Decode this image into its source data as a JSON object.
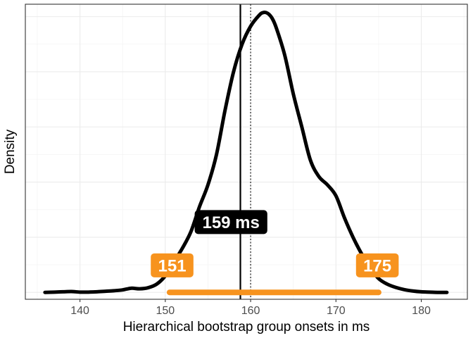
{
  "chart_data": {
    "type": "line",
    "xlabel": "Hierarchical bootstrap group onsets in ms",
    "ylabel": "Density",
    "xlim": [
      133.6,
      185.4
    ],
    "ylim": [
      -0.0025,
      0.1045
    ],
    "x_ticks": [
      140,
      150,
      160,
      170,
      180
    ],
    "x_tick_labels": [
      "140",
      "150",
      "160",
      "170",
      "180"
    ],
    "y_ticks_labeled": false,
    "grid": true,
    "legend": "none",
    "colors": {
      "curve": "#000000",
      "interval": "#f7931e",
      "median_badge": "#000000",
      "grid_major": "#ebebeb",
      "grid_minor": "#f4f4f4",
      "panel_border": "#333333"
    },
    "density_curve": {
      "x": [
        135.9,
        137,
        138,
        139,
        140,
        141,
        142,
        143,
        144,
        145,
        146,
        147,
        148,
        149,
        150,
        151,
        152,
        153,
        154,
        155,
        156,
        157,
        158,
        159,
        160,
        161,
        161.5,
        162,
        162.5,
        163,
        164,
        165,
        166,
        167,
        168,
        169,
        170,
        171,
        172,
        173,
        174,
        175,
        176,
        177,
        178,
        179,
        180,
        181,
        182,
        183
      ],
      "y": [
        0.0,
        0.0001,
        0.0002,
        0.0003,
        0.0001,
        0.0001,
        0.0002,
        0.0004,
        0.0006,
        0.0009,
        0.0015,
        0.0013,
        0.0017,
        0.003,
        0.006,
        0.011,
        0.016,
        0.022,
        0.031,
        0.039,
        0.05,
        0.066,
        0.08,
        0.09,
        0.0965,
        0.1005,
        0.1015,
        0.1012,
        0.0995,
        0.096,
        0.086,
        0.072,
        0.06,
        0.048,
        0.042,
        0.039,
        0.035,
        0.027,
        0.02,
        0.014,
        0.009,
        0.005,
        0.003,
        0.0018,
        0.001,
        0.0005,
        0.0002,
        0.0001,
        0.0,
        0.0
      ]
    },
    "median_line_x": 158.8,
    "reference_line_x": 160,
    "interval": {
      "low": 150.5,
      "high": 175
    },
    "annotations": {
      "median_label": "159 ms",
      "low_label": "151",
      "high_label": "175"
    },
    "annotation_y": {
      "median_label": 0.0255,
      "low_label": 0.0098,
      "high_label": 0.0098
    }
  }
}
